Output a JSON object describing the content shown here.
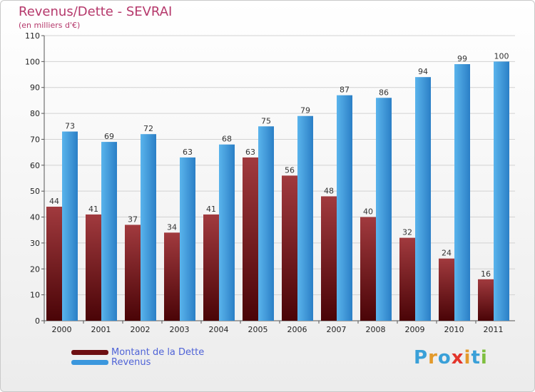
{
  "title": "Revenus/Dette - SEVRAI",
  "subtitle": "(en milliers d'€)",
  "logo": {
    "text": "Proxiti",
    "letter_colors": [
      "#3aa0d8",
      "#e39a2b",
      "#3aa0d8",
      "#e3352b",
      "#e39a2b",
      "#3aa0d8",
      "#7fbf3f"
    ]
  },
  "legend": {
    "debt_label": "Montant de la Dette",
    "revenue_label": "Revenus"
  },
  "colors": {
    "debt": "#7a1518",
    "revenue": "#3b97dd",
    "grid": "#d2d2d2",
    "axis_text": "#222222",
    "title": "#b5386b",
    "legend_text": "#4f63d7"
  },
  "chart_data": {
    "type": "bar",
    "title": "Revenus/Dette - SEVRAI",
    "subtitle": "(en milliers d'€)",
    "categories": [
      "2000",
      "2001",
      "2002",
      "2003",
      "2004",
      "2005",
      "2006",
      "2007",
      "2008",
      "2009",
      "2010",
      "2011"
    ],
    "series": [
      {
        "name": "Montant de la Dette",
        "values": [
          44,
          41,
          37,
          34,
          41,
          63,
          56,
          48,
          40,
          32,
          24,
          16
        ]
      },
      {
        "name": "Revenus",
        "values": [
          73,
          69,
          72,
          63,
          68,
          75,
          79,
          87,
          86,
          94,
          99,
          100
        ]
      }
    ],
    "yticks": [
      0,
      10,
      20,
      30,
      40,
      50,
      60,
      70,
      80,
      90,
      100,
      110
    ],
    "ylim": [
      0,
      110
    ],
    "grid": true,
    "legend_position": "bottom-left"
  }
}
